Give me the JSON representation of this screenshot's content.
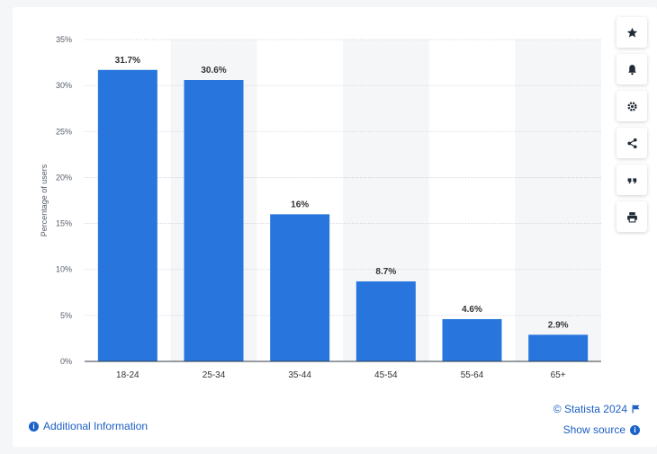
{
  "chart_data": {
    "type": "bar",
    "categories": [
      "18-24",
      "25-34",
      "35-44",
      "45-54",
      "55-64",
      "65+"
    ],
    "values": [
      31.7,
      30.6,
      16,
      8.7,
      4.6,
      2.9
    ],
    "value_labels": [
      "31.7%",
      "30.6%",
      "16%",
      "8.7%",
      "4.6%",
      "2.9%"
    ],
    "title": "",
    "xlabel": "",
    "ylabel": "Percentage of users",
    "ylim": [
      0,
      35
    ],
    "yticks": [
      0,
      5,
      10,
      15,
      20,
      25,
      30,
      35
    ],
    "ytick_labels": [
      "0%",
      "5%",
      "10%",
      "15%",
      "20%",
      "25%",
      "30%",
      "35%"
    ],
    "grid": true,
    "legend": "none",
    "bar_color": "#2876dd",
    "band_color": "#f5f6f8"
  },
  "toolbar": {
    "buttons": [
      {
        "icon": "star-icon",
        "name": "favorite-button"
      },
      {
        "icon": "bell-icon",
        "name": "notification-button"
      },
      {
        "icon": "gear-icon",
        "name": "settings-button"
      },
      {
        "icon": "share-icon",
        "name": "share-button"
      },
      {
        "icon": "quote-icon",
        "name": "cite-button"
      },
      {
        "icon": "print-icon",
        "name": "print-button"
      }
    ]
  },
  "footer": {
    "additional_info": "Additional Information",
    "copyright": "© Statista 2024",
    "show_source": "Show source"
  },
  "colors": {
    "accent": "#1c5ec5",
    "bar": "#2876dd"
  }
}
